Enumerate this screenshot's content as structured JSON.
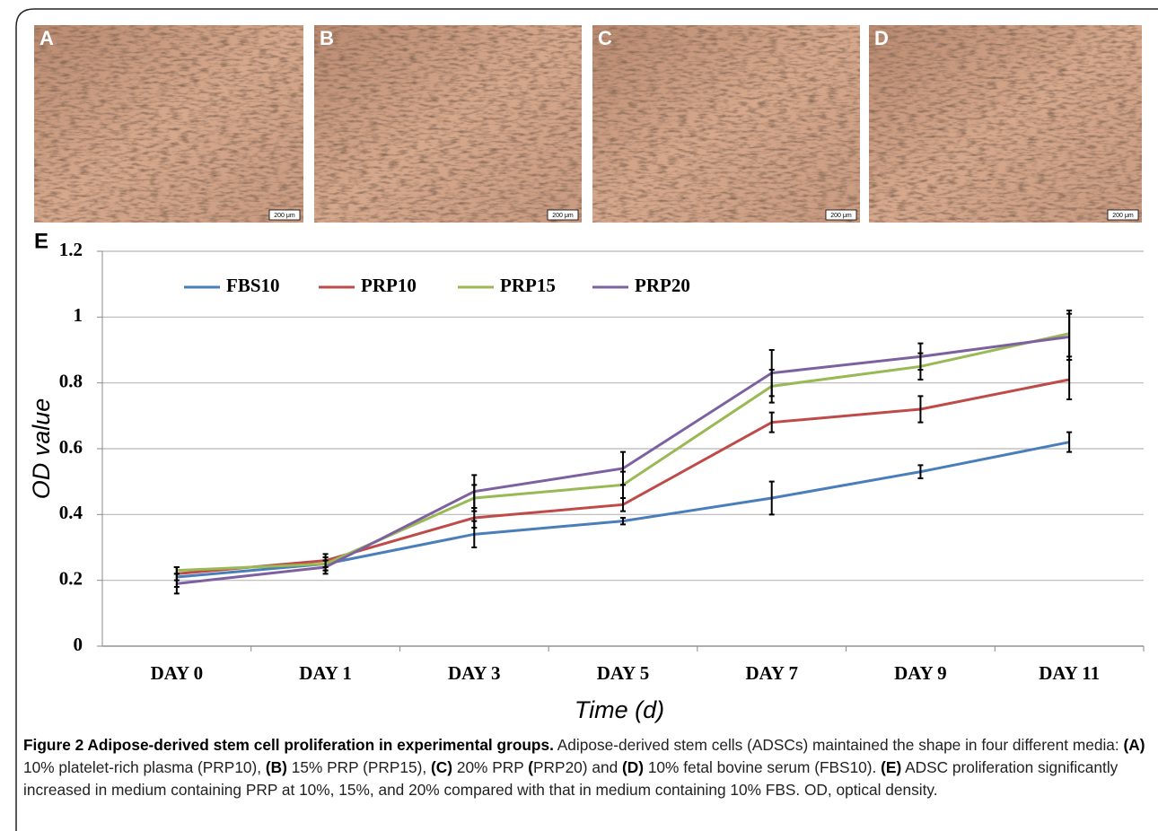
{
  "panels": [
    {
      "label": "A",
      "scale": "200 μm"
    },
    {
      "label": "B",
      "scale": "200 μm"
    },
    {
      "label": "C",
      "scale": "200 μm"
    },
    {
      "label": "D",
      "scale": "200 μm"
    }
  ],
  "chart_data": {
    "type": "line",
    "panel_label": "E",
    "x_label": "Time (d)",
    "y_label": "OD value",
    "categories": [
      "DAY 0",
      "DAY 1",
      "DAY 3",
      "DAY 5",
      "DAY 7",
      "DAY 9",
      "DAY 11"
    ],
    "series": [
      {
        "name": "FBS10",
        "color": "#4a7ebb",
        "values": [
          0.21,
          0.25,
          0.34,
          0.38,
          0.45,
          0.53,
          0.62
        ],
        "errors": [
          0.03,
          0.02,
          0.04,
          0.01,
          0.05,
          0.02,
          0.03
        ]
      },
      {
        "name": "PRP10",
        "color": "#be4b48",
        "values": [
          0.22,
          0.26,
          0.39,
          0.43,
          0.68,
          0.72,
          0.81
        ],
        "errors": [
          0.02,
          0.02,
          0.03,
          0.02,
          0.03,
          0.04,
          0.06
        ]
      },
      {
        "name": "PRP15",
        "color": "#98b954",
        "values": [
          0.23,
          0.25,
          0.45,
          0.49,
          0.79,
          0.85,
          0.95
        ],
        "errors": [
          0.01,
          0.02,
          0.04,
          0.04,
          0.05,
          0.04,
          0.07
        ]
      },
      {
        "name": "PRP20",
        "color": "#7d60a0",
        "values": [
          0.19,
          0.24,
          0.47,
          0.54,
          0.83,
          0.88,
          0.94
        ],
        "errors": [
          0.03,
          0.02,
          0.05,
          0.05,
          0.07,
          0.04,
          0.07
        ]
      }
    ],
    "ylim": [
      0,
      1.2
    ],
    "yticks": [
      0,
      0.2,
      0.4,
      0.6,
      0.8,
      1,
      1.2
    ],
    "grid": true,
    "legend": "top"
  },
  "caption": [
    "Figure 2 Adipose-derived stem cell proliferation in experimental groups.",
    "Adipose-derived stem cells (ADSCs) maintained the shape in four different media:",
    "(A)",
    "10% platelet-rich plasma (PRP10),",
    "(B)",
    "15% PRP (PRP15),",
    "(C)",
    "20% PRP",
    "(",
    "PRP20) and",
    "(D)",
    "10% fetal bovine serum (FBS10).",
    "(E)",
    "ADSC proliferation significantly increased in medium containing PRP at 10%, 15%, and 20% compared with that in medium containing 10% FBS. OD, optical density."
  ]
}
